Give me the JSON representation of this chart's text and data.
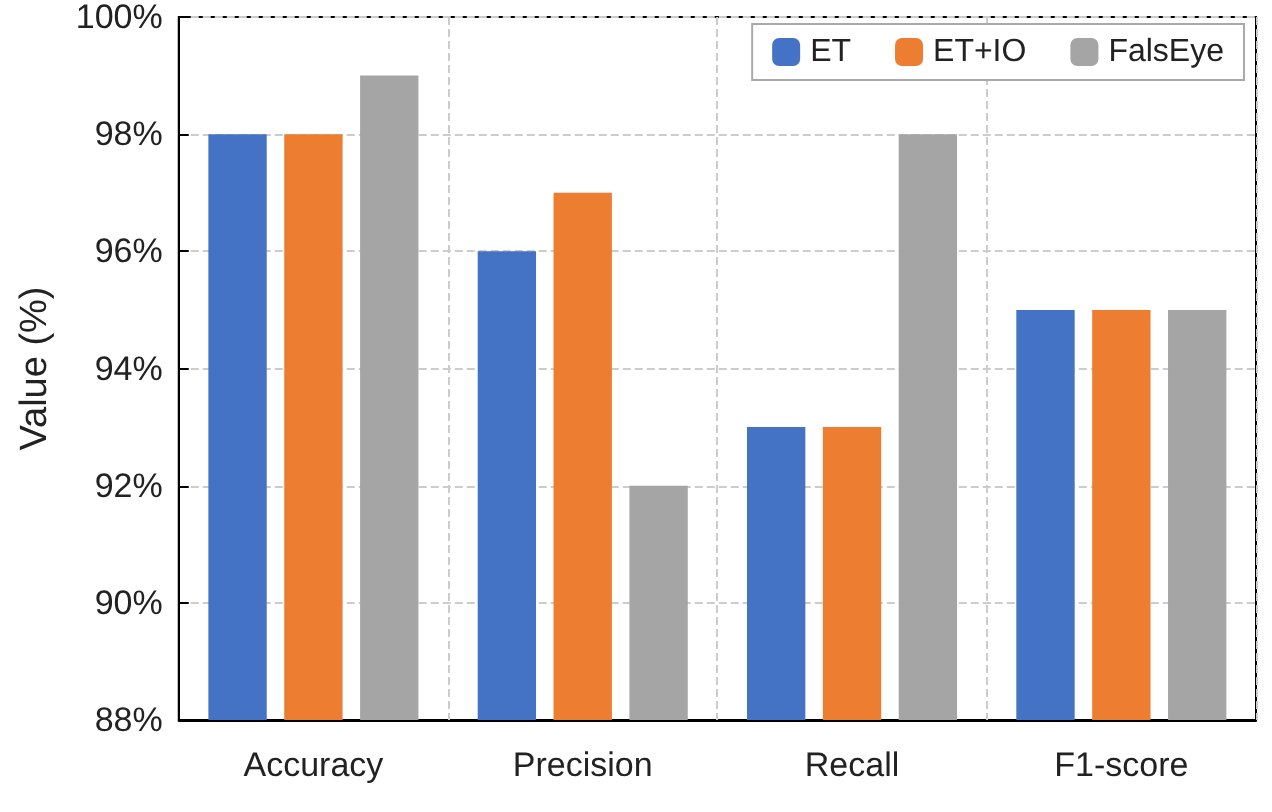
{
  "chart_data": {
    "type": "bar",
    "ylabel": "Value (%)",
    "categories": [
      "Accuracy",
      "Precision",
      "Recall",
      "F1-score"
    ],
    "series": [
      {
        "name": "ET",
        "color": "#4472c4",
        "values": [
          98,
          96,
          93,
          95
        ]
      },
      {
        "name": "ET+IO",
        "color": "#ed7d31",
        "values": [
          98,
          97,
          93,
          95
        ]
      },
      {
        "name": "FalsEye",
        "color": "#a5a5a5",
        "values": [
          99,
          92,
          98,
          95
        ]
      }
    ],
    "ylim": [
      88,
      100
    ],
    "yticks": [
      {
        "value": 88,
        "label": "88%"
      },
      {
        "value": 90,
        "label": "90%"
      },
      {
        "value": 92,
        "label": "92%"
      },
      {
        "value": 94,
        "label": "94%"
      },
      {
        "value": 96,
        "label": "96%"
      },
      {
        "value": 98,
        "label": "98%"
      },
      {
        "value": 100,
        "label": "100%"
      }
    ],
    "grid": true,
    "legend": "top right"
  }
}
